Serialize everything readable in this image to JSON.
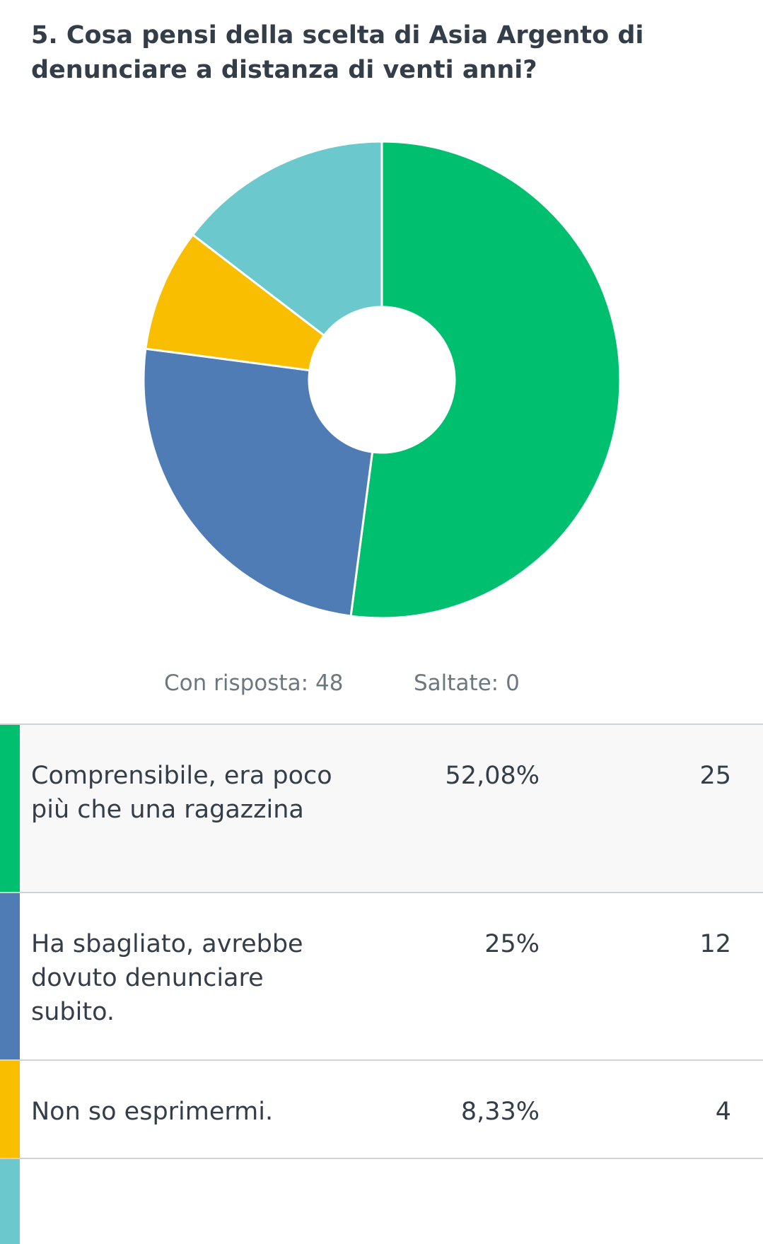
{
  "question": {
    "title": "5. Cosa pensi della scelta di Asia Argento di denunciare a distanza di venti anni?"
  },
  "summary": {
    "answered_label": "Con risposta:",
    "answered_value": "48",
    "skipped_label": "Saltate:",
    "skipped_value": "0"
  },
  "chart_data": {
    "type": "pie",
    "style": "donut",
    "categories": [
      "Comprensibile, era poco più che una ragazzina",
      "Ha sbagliato, avrebbe dovuto denunciare subito.",
      "Non so esprimermi.",
      ""
    ],
    "values": [
      52.08,
      25,
      8.33,
      14.59
    ],
    "counts": [
      25,
      12,
      4,
      7
    ],
    "colors": [
      "#00bf6f",
      "#507cb6",
      "#f9be00",
      "#6bc8cd"
    ]
  },
  "answers": [
    {
      "label": "Comprensibile, era poco più che una ragazzina",
      "percent": "52,08%",
      "count": "25",
      "color": "#00bf6f"
    },
    {
      "label": "Ha sbagliato, avrebbe dovuto denunciare subito.",
      "percent": "25%",
      "count": "12",
      "color": "#507cb6"
    },
    {
      "label": "Non so esprimermi.",
      "percent": "8,33%",
      "count": "4",
      "color": "#f9be00"
    },
    {
      "label": "",
      "percent": "",
      "count": "",
      "color": "#6bc8cd"
    }
  ]
}
